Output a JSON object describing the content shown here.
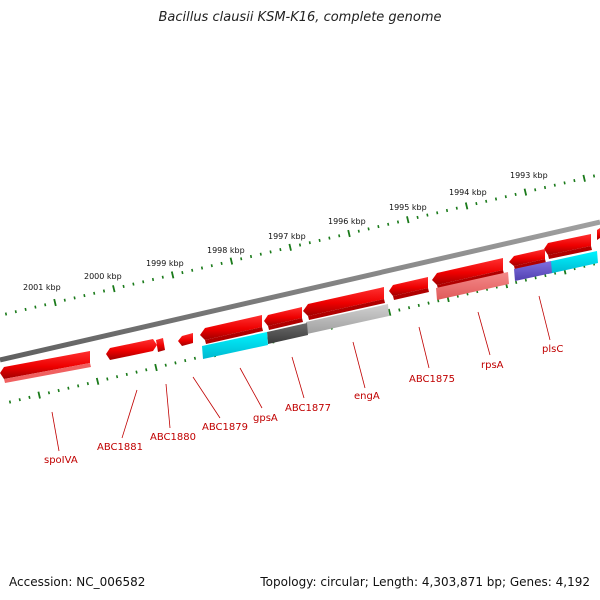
{
  "title": "Bacillus clausii KSM-K16, complete genome",
  "footer": {
    "accession": "Accession: NC_006582",
    "summary": "Topology: circular; Length: 4,303,871 bp; Genes: 4,192"
  },
  "kbp_ticks": [
    {
      "label": "1993 kbp"
    },
    {
      "label": "1994 kbp"
    },
    {
      "label": "1995 kbp"
    },
    {
      "label": "1996 kbp"
    },
    {
      "label": "1997 kbp"
    },
    {
      "label": "1998 kbp"
    },
    {
      "label": "1999 kbp"
    },
    {
      "label": "2000 kbp"
    },
    {
      "label": "2001 kbp"
    }
  ],
  "gene_labels": [
    "spoIVA",
    "ABC1881",
    "ABC1880",
    "ABC1879",
    "gpsA",
    "ABC1877",
    "engA",
    "ABC1875",
    "rpsA",
    "plsC"
  ],
  "colors": {
    "gene": "#ee0000",
    "cyan": "#00e0f0",
    "dark_gray": "#555555",
    "light_gray": "#b8b8b8",
    "pink": "#f07070",
    "purple": "#6a5acd",
    "backbone": "#7a7a7a",
    "tick": "#1a7a1a",
    "label": "#c00000"
  }
}
